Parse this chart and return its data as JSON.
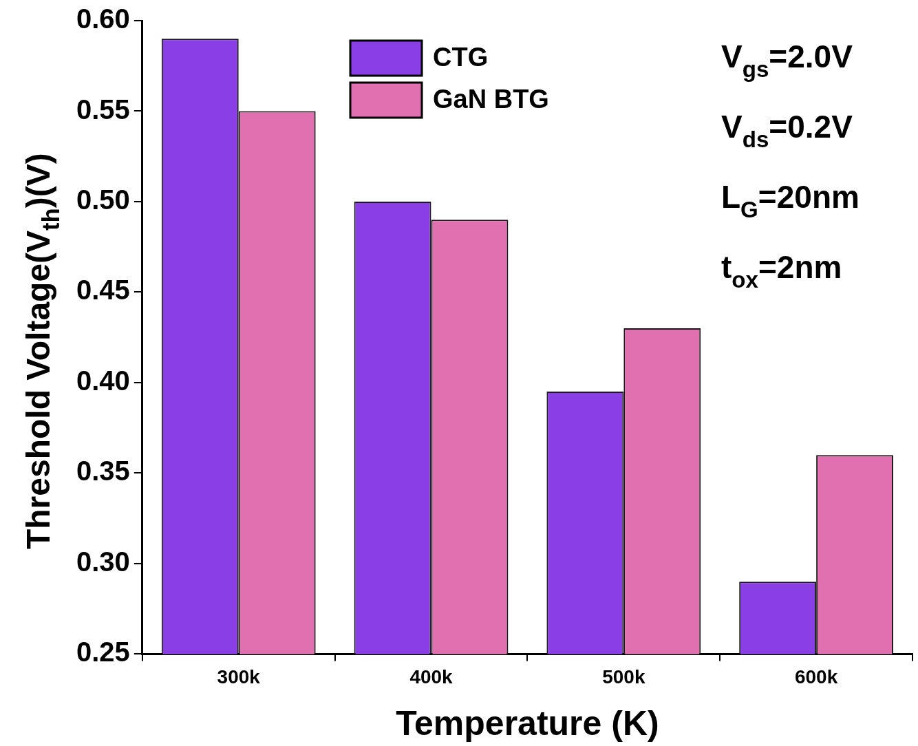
{
  "chart_data": {
    "type": "bar",
    "xlabel": "Temperature (K)",
    "ylabel": "Threshold Voltage(V$_{th}$)(V)",
    "categories": [
      "300k",
      "400k",
      "500k",
      "600k"
    ],
    "series": [
      {
        "name": "CTG",
        "color": "#8a3ee6",
        "values": [
          0.59,
          0.5,
          0.395,
          0.29
        ]
      },
      {
        "name": "GaN BTG",
        "color": "#e070b0",
        "values": [
          0.55,
          0.49,
          0.43,
          0.36
        ]
      }
    ],
    "ylim": [
      0.25,
      0.6
    ],
    "yticks": [
      0.25,
      {
        "value": 0.3,
        "label": "0.30"
      },
      0.35,
      {
        "value": 0.4,
        "label": "0.40"
      },
      0.45,
      {
        "value": 0.5,
        "label": "0.50"
      },
      0.55,
      {
        "value": 0.6,
        "label": "0.60"
      }
    ],
    "legend": "top",
    "annotations": [
      "V$_{gs}$=2.0V",
      "V$_{ds}$=0.2V",
      "L$_{G}$=20nm",
      "t$_{ox}$=2nm"
    ]
  }
}
